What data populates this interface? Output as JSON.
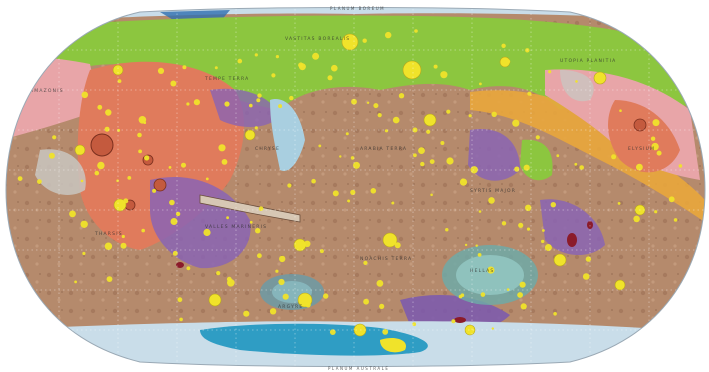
{
  "map": {
    "title": "",
    "projection": "Robinson",
    "graticule": true,
    "colors": {
      "background": "#ffffff",
      "northern_plains": "#8cc63f",
      "polar_cap": "#bcd6e6",
      "cratered_highlands": "#b88c6e",
      "volcanic_province": "#e07b5c",
      "pink_lowlands": "#e8a5a8",
      "purple_units": "#8a64b4",
      "orange_units": "#e9a63c",
      "channel_units": "#a9cfe0",
      "southern_ice": "#2f9dc4",
      "impact_craters": "#f0e32a",
      "basin_floor": "#7fb6b0",
      "dark_red_spots": "#8b1b2a"
    },
    "labels": {
      "north_rim": "PLANUM BOREUM",
      "south_rim": "PLANUM AUSTRALE",
      "vastitas": "VASTITAS BOREALIS",
      "amazonis": "AMAZONIS",
      "tharsis": "THARSIS",
      "arabia": "ARABIA TERRA",
      "hellas": "HELLAS",
      "argyre": "ARGYRE",
      "elysium": "ELYSIUM",
      "utopia": "UTOPIA PLANITIA",
      "valles": "VALLES MARINERIS",
      "syrtis": "SYRTIS MAJOR",
      "noachis": "NOACHIS TERRA",
      "tempe": "TEMPE TERRA",
      "chryse": "CHRYSE"
    }
  }
}
